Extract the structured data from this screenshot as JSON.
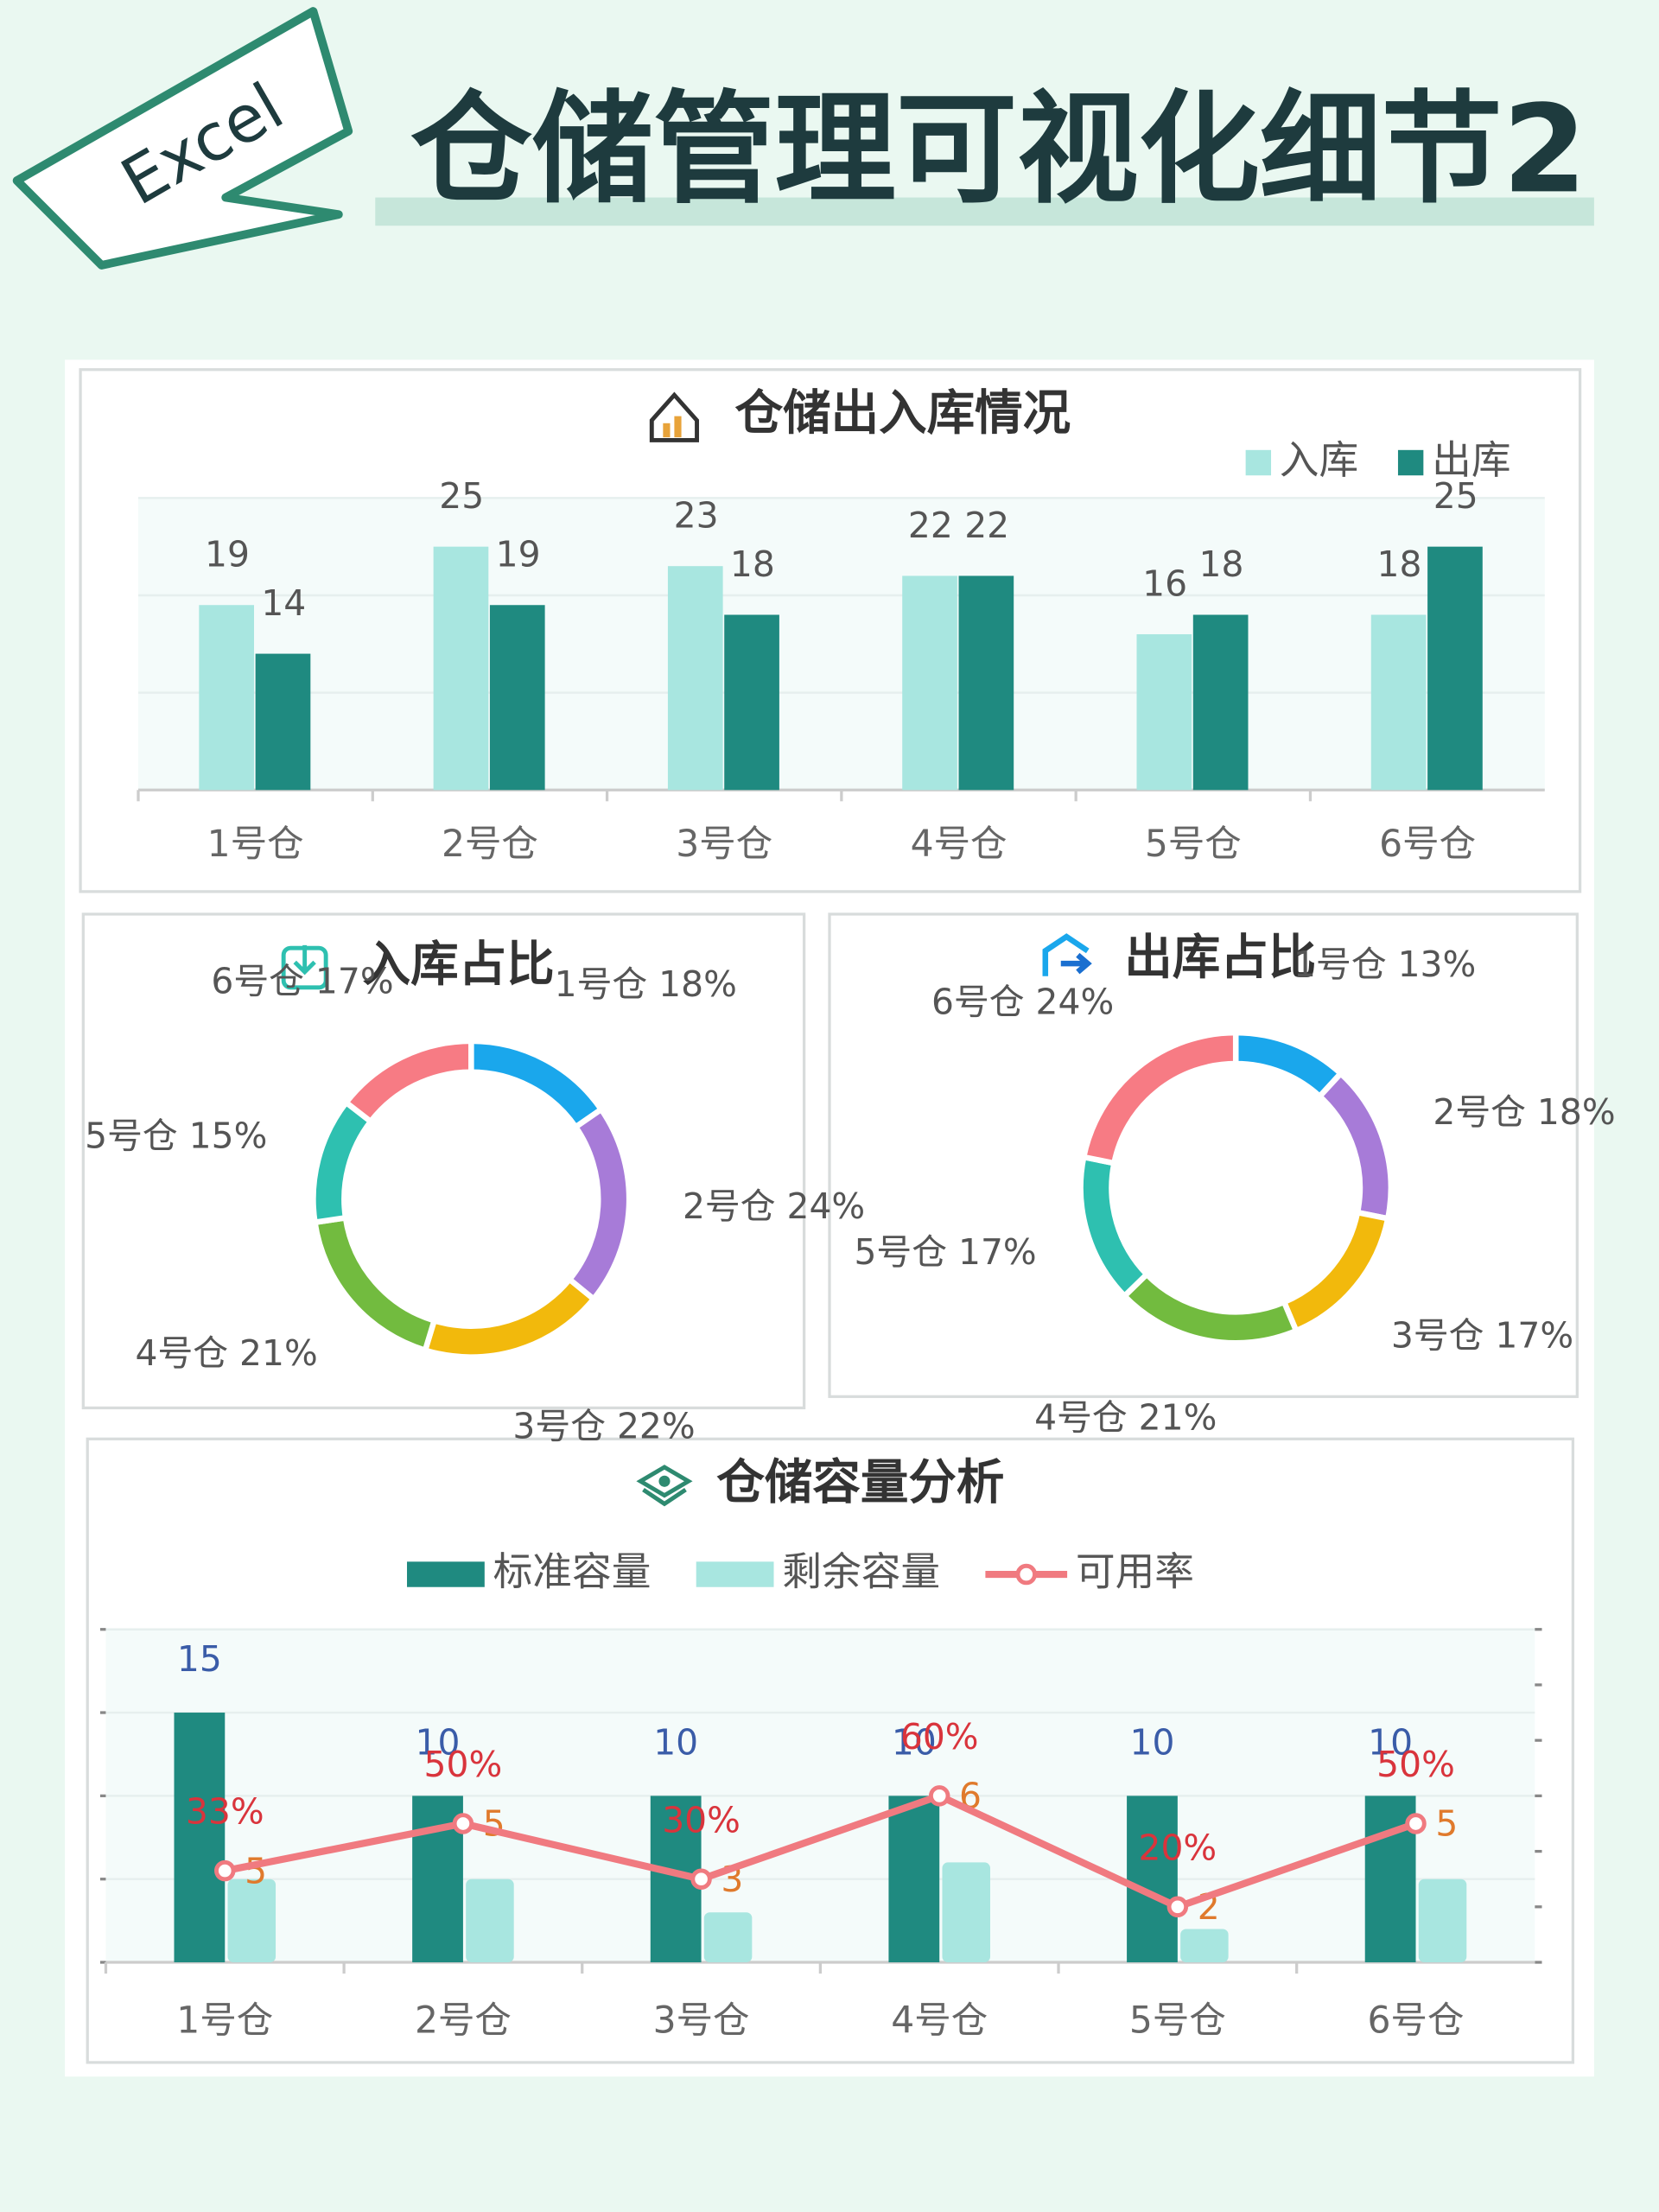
{
  "header": {
    "badge": "Excel",
    "title": "仓储管理可视化细节2"
  },
  "chart_data": [
    {
      "type": "bar",
      "title": "仓储出入库情况",
      "categories": [
        "1号仓",
        "2号仓",
        "3号仓",
        "4号仓",
        "5号仓",
        "6号仓"
      ],
      "series": [
        {
          "name": "入库",
          "color": "#a8e6e0",
          "values": [
            19,
            25,
            23,
            22,
            16,
            18
          ]
        },
        {
          "name": "出库",
          "color": "#1f8a80",
          "values": [
            14,
            19,
            18,
            22,
            18,
            25
          ]
        }
      ],
      "ylim": [
        0,
        30
      ],
      "yticks": [
        0,
        10,
        20,
        30
      ],
      "grid": true,
      "legend": "top-right"
    },
    {
      "type": "pie",
      "title": "入库占比",
      "categories": [
        "1号仓",
        "2号仓",
        "3号仓",
        "4号仓",
        "5号仓",
        "6号仓"
      ],
      "values": [
        18,
        24,
        22,
        21,
        15,
        17
      ],
      "value_labels": [
        "18%",
        "24%",
        "22%",
        "21%",
        "15%",
        "17%"
      ],
      "colors": [
        "#1aa7ec",
        "#a77bd8",
        "#f2b90c",
        "#72bb3f",
        "#2ec0b0",
        "#f77b84"
      ]
    },
    {
      "type": "pie",
      "title": "出库占比",
      "categories": [
        "1号仓",
        "2号仓",
        "3号仓",
        "4号仓",
        "5号仓",
        "6号仓"
      ],
      "values": [
        13,
        18,
        17,
        21,
        17,
        24
      ],
      "value_labels": [
        "13%",
        "18%",
        "17%",
        "21%",
        "17%",
        "24%"
      ],
      "colors": [
        "#1aa7ec",
        "#a77bd8",
        "#f2b90c",
        "#72bb3f",
        "#2ec0b0",
        "#f77b84"
      ]
    },
    {
      "type": "combo",
      "title": "仓储容量分析",
      "categories": [
        "1号仓",
        "2号仓",
        "3号仓",
        "4号仓",
        "5号仓",
        "6号仓"
      ],
      "series": [
        {
          "name": "标准容量",
          "type": "bar",
          "color": "#1f8a80",
          "label_color": "#3a5ca8",
          "values": [
            15,
            10,
            10,
            10,
            10,
            10
          ]
        },
        {
          "name": "剩余容量",
          "type": "bar",
          "color": "#a8e6e0",
          "label_color": "#e07a2c",
          "values": [
            5,
            5,
            3,
            6,
            2,
            5
          ]
        },
        {
          "name": "可用率",
          "type": "line",
          "axis": "y2",
          "color": "#f07a80",
          "label_color": "#d9343c",
          "values": [
            33,
            50,
            30,
            60,
            20,
            50
          ],
          "value_labels": [
            "33%",
            "50%",
            "30%",
            "60%",
            "20%",
            "50%"
          ]
        }
      ],
      "ylim": [
        0,
        20
      ],
      "yticks": [
        0,
        5,
        10,
        15,
        20
      ],
      "y2lim": [
        0,
        120
      ],
      "y2ticks": [
        0,
        20,
        40,
        60,
        80,
        100,
        120
      ],
      "grid": true,
      "legend": "top"
    }
  ]
}
